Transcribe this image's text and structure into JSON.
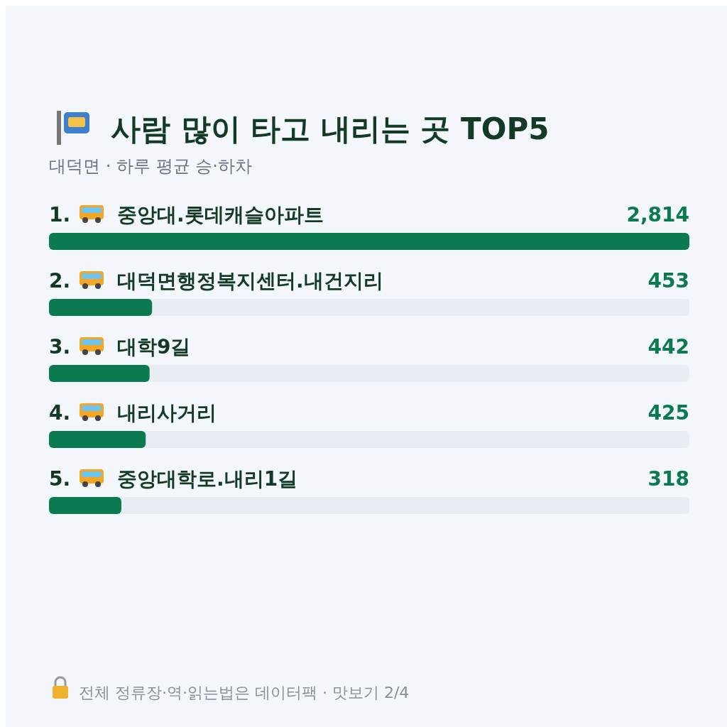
{
  "chart_data": {
    "type": "bar",
    "orientation": "horizontal",
    "title": "사람 많이 타고 내리는 곳 TOP5",
    "subtitle": "대덕면 · 하루 평균 승·하차",
    "categories": [
      "1. 중앙대.롯데캐슬아파트",
      "2. 대덕면행정복지센터.내건지리",
      "3. 대학9길",
      "4. 내리사거리",
      "5. 중앙대학로.내리1길"
    ],
    "values": [
      2814,
      453,
      442,
      425,
      318
    ],
    "value_labels": [
      "2,814",
      "453",
      "442",
      "425",
      "318"
    ],
    "color": "#0b7a50",
    "xlim": [
      0,
      2814
    ],
    "annotations": [
      "전체 정류장·역·읽는법은 데이터팩 · 맛보기 2/4"
    ]
  }
}
